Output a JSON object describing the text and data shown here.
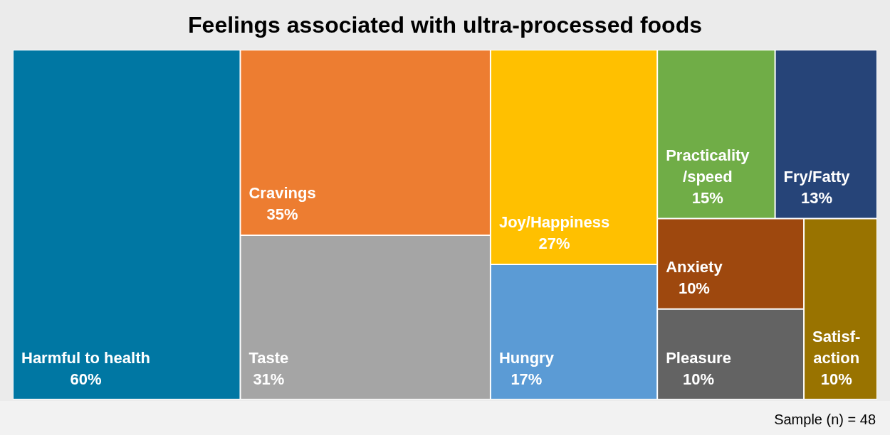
{
  "chart_data": {
    "type": "other",
    "title": "Feelings associated with ultra-processed foods",
    "categories": [
      "Harmful to health",
      "Cravings",
      "Taste",
      "Joy/Happiness",
      "Hungry",
      "Practicality /speed",
      "Fry/Fatty",
      "Anxiety",
      "Pleasure",
      "Satisf-action"
    ],
    "values": [
      60,
      35,
      31,
      27,
      17,
      15,
      13,
      10,
      10,
      10
    ],
    "value_labels": [
      "60%",
      "35%",
      "31%",
      "27%",
      "17%",
      "15%",
      "13%",
      "10%",
      "10%",
      "10%"
    ],
    "colors": [
      "#0077a3",
      "#ed7d31",
      "#a5a5a5",
      "#ffc000",
      "#5b9bd5",
      "#70ad47",
      "#264478",
      "#9e480e",
      "#636363",
      "#997300"
    ],
    "annotations": [
      "Sample (n) = 48"
    ]
  }
}
